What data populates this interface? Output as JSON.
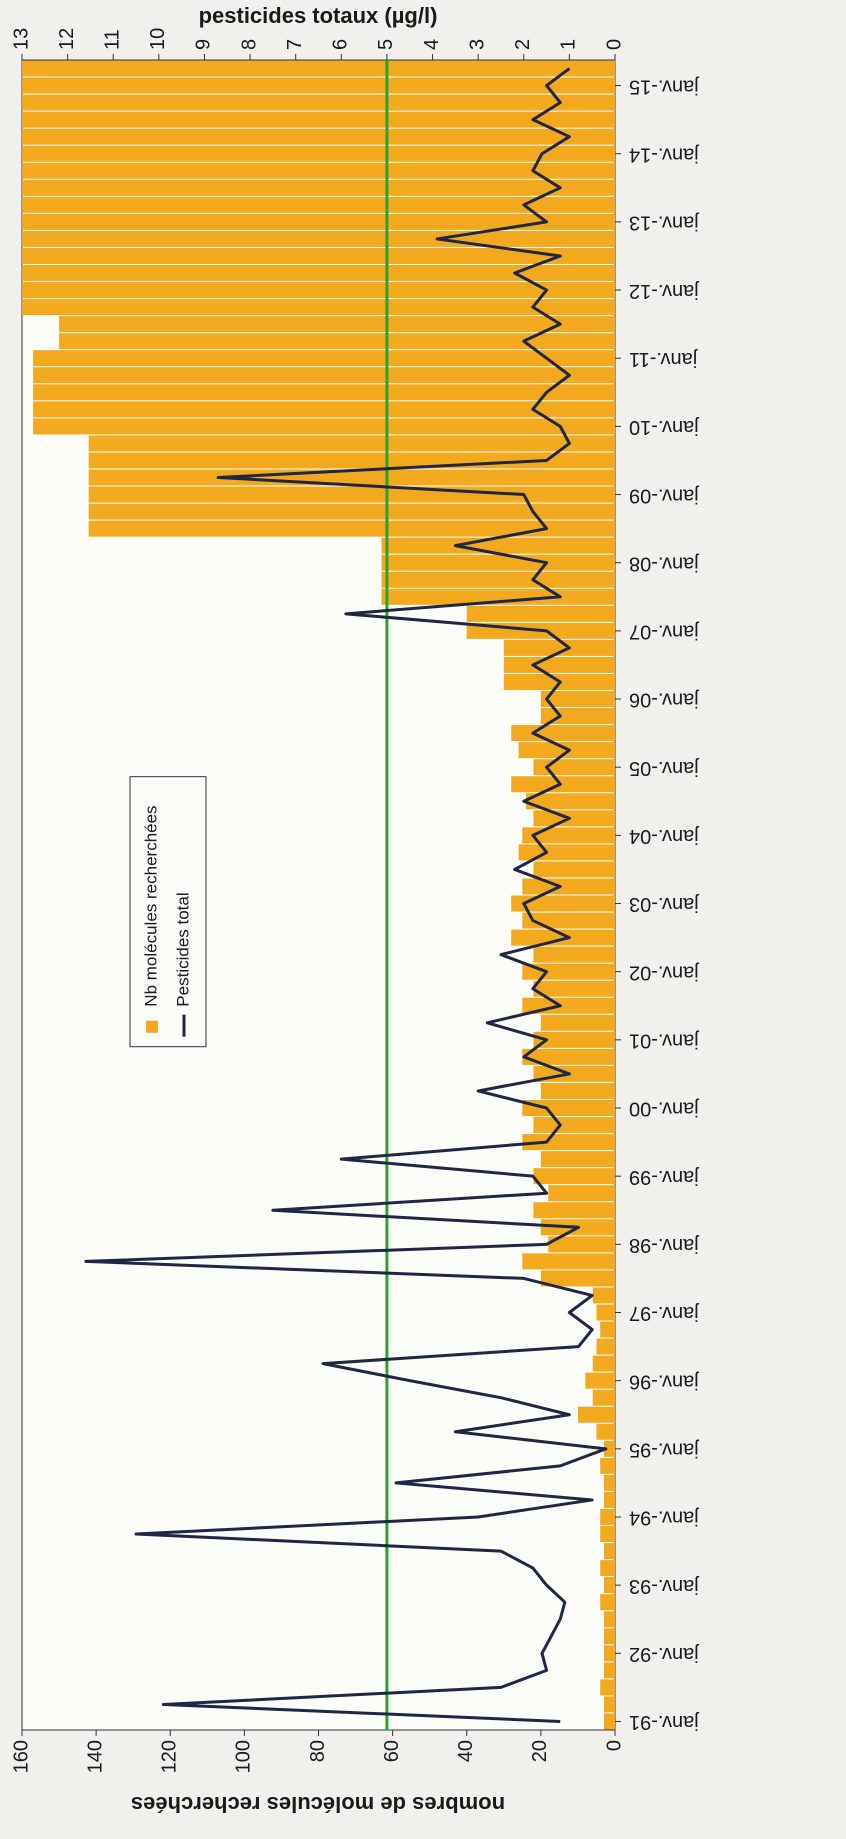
{
  "chart_data": {
    "type": "bar-line",
    "y_label": "nombres de molécules recherchées",
    "y2_label": "pesticides totaux (µg/l)",
    "categories": [
      "janv.-91",
      null,
      null,
      null,
      "janv.-92",
      null,
      null,
      null,
      "janv.-93",
      null,
      null,
      null,
      "janv.-94",
      null,
      null,
      null,
      "janv.-95",
      null,
      null,
      null,
      "janv.-96",
      null,
      null,
      null,
      "janv.-97",
      null,
      null,
      null,
      "janv.-98",
      null,
      null,
      null,
      "janv.-99",
      null,
      null,
      null,
      "janv.-00",
      null,
      null,
      null,
      "janv.-01",
      null,
      null,
      null,
      "janv.-02",
      null,
      null,
      null,
      "janv.-03",
      null,
      null,
      null,
      "janv.-04",
      null,
      null,
      null,
      "janv.-05",
      null,
      null,
      null,
      "janv.-06",
      null,
      null,
      null,
      "janv.-07",
      null,
      null,
      null,
      "janv.-08",
      null,
      null,
      null,
      "janv.-09",
      null,
      null,
      null,
      "janv.-10",
      null,
      null,
      null,
      "janv.-11",
      null,
      null,
      null,
      "janv.-12",
      null,
      null,
      null,
      "janv.-13",
      null,
      null,
      null,
      "janv.-14",
      null,
      null,
      null,
      "janv.-15",
      null
    ],
    "series": [
      {
        "name": "Nb molécules recherchées",
        "type": "bar",
        "color": "#f2a91e",
        "values": [
          3,
          3,
          4,
          3,
          3,
          3,
          3,
          4,
          3,
          4,
          3,
          4,
          4,
          3,
          3,
          4,
          3,
          5,
          10,
          6,
          8,
          6,
          5,
          4,
          5,
          6,
          20,
          25,
          18,
          20,
          22,
          18,
          22,
          20,
          25,
          22,
          25,
          20,
          22,
          25,
          22,
          20,
          25,
          22,
          25,
          22,
          28,
          25,
          28,
          25,
          22,
          26,
          25,
          22,
          24,
          28,
          22,
          26,
          28,
          20,
          20,
          30,
          30,
          30,
          40,
          40,
          63,
          63,
          63,
          63,
          142,
          142,
          142,
          142,
          142,
          142,
          157,
          157,
          157,
          157,
          157,
          150,
          150,
          160,
          160,
          160,
          160,
          160,
          160,
          160,
          160,
          160,
          160,
          160,
          160,
          160,
          160,
          160
        ]
      },
      {
        "name": "Pesticides total",
        "type": "line",
        "axis": "y2",
        "color": "#1f2745",
        "values": [
          1.2,
          9.9,
          2.5,
          1.5,
          1.6,
          1.4,
          1.2,
          1.1,
          1.5,
          1.8,
          2.5,
          10.5,
          3.0,
          0.5,
          4.8,
          1.2,
          0.2,
          3.5,
          1.0,
          2.5,
          4.5,
          6.4,
          0.8,
          0.5,
          1.0,
          0.5,
          2.0,
          11.6,
          1.5,
          0.8,
          7.5,
          1.5,
          1.8,
          6.0,
          1.5,
          1.2,
          1.5,
          3.0,
          1.0,
          2.0,
          1.5,
          2.8,
          1.2,
          1.8,
          1.5,
          2.5,
          1.0,
          1.8,
          2.0,
          1.2,
          2.2,
          1.5,
          1.8,
          1.0,
          2.0,
          1.2,
          1.5,
          1.0,
          1.8,
          1.2,
          1.5,
          1.2,
          1.8,
          1.0,
          1.5,
          5.9,
          1.2,
          1.8,
          1.5,
          3.5,
          1.5,
          1.8,
          2.0,
          8.7,
          1.5,
          1.0,
          1.2,
          1.8,
          1.5,
          1.0,
          1.5,
          2.0,
          1.2,
          1.8,
          1.5,
          2.2,
          1.2,
          3.9,
          1.5,
          2.0,
          1.2,
          1.8,
          1.6,
          1.0,
          1.8,
          1.2,
          1.5,
          1.0
        ]
      }
    ],
    "reference_line": {
      "value": 5,
      "axis": "y2",
      "color": "#2ea02c"
    },
    "ylim": [
      0,
      160
    ],
    "yticks": [
      0,
      20,
      40,
      60,
      80,
      100,
      120,
      140,
      160
    ],
    "y2lim": [
      0,
      13
    ],
    "y2ticks": [
      0,
      1,
      2,
      3,
      4,
      5,
      6,
      7,
      8,
      9,
      10,
      11,
      12,
      13
    ],
    "legend_loc": "upper center",
    "grid": false
  }
}
